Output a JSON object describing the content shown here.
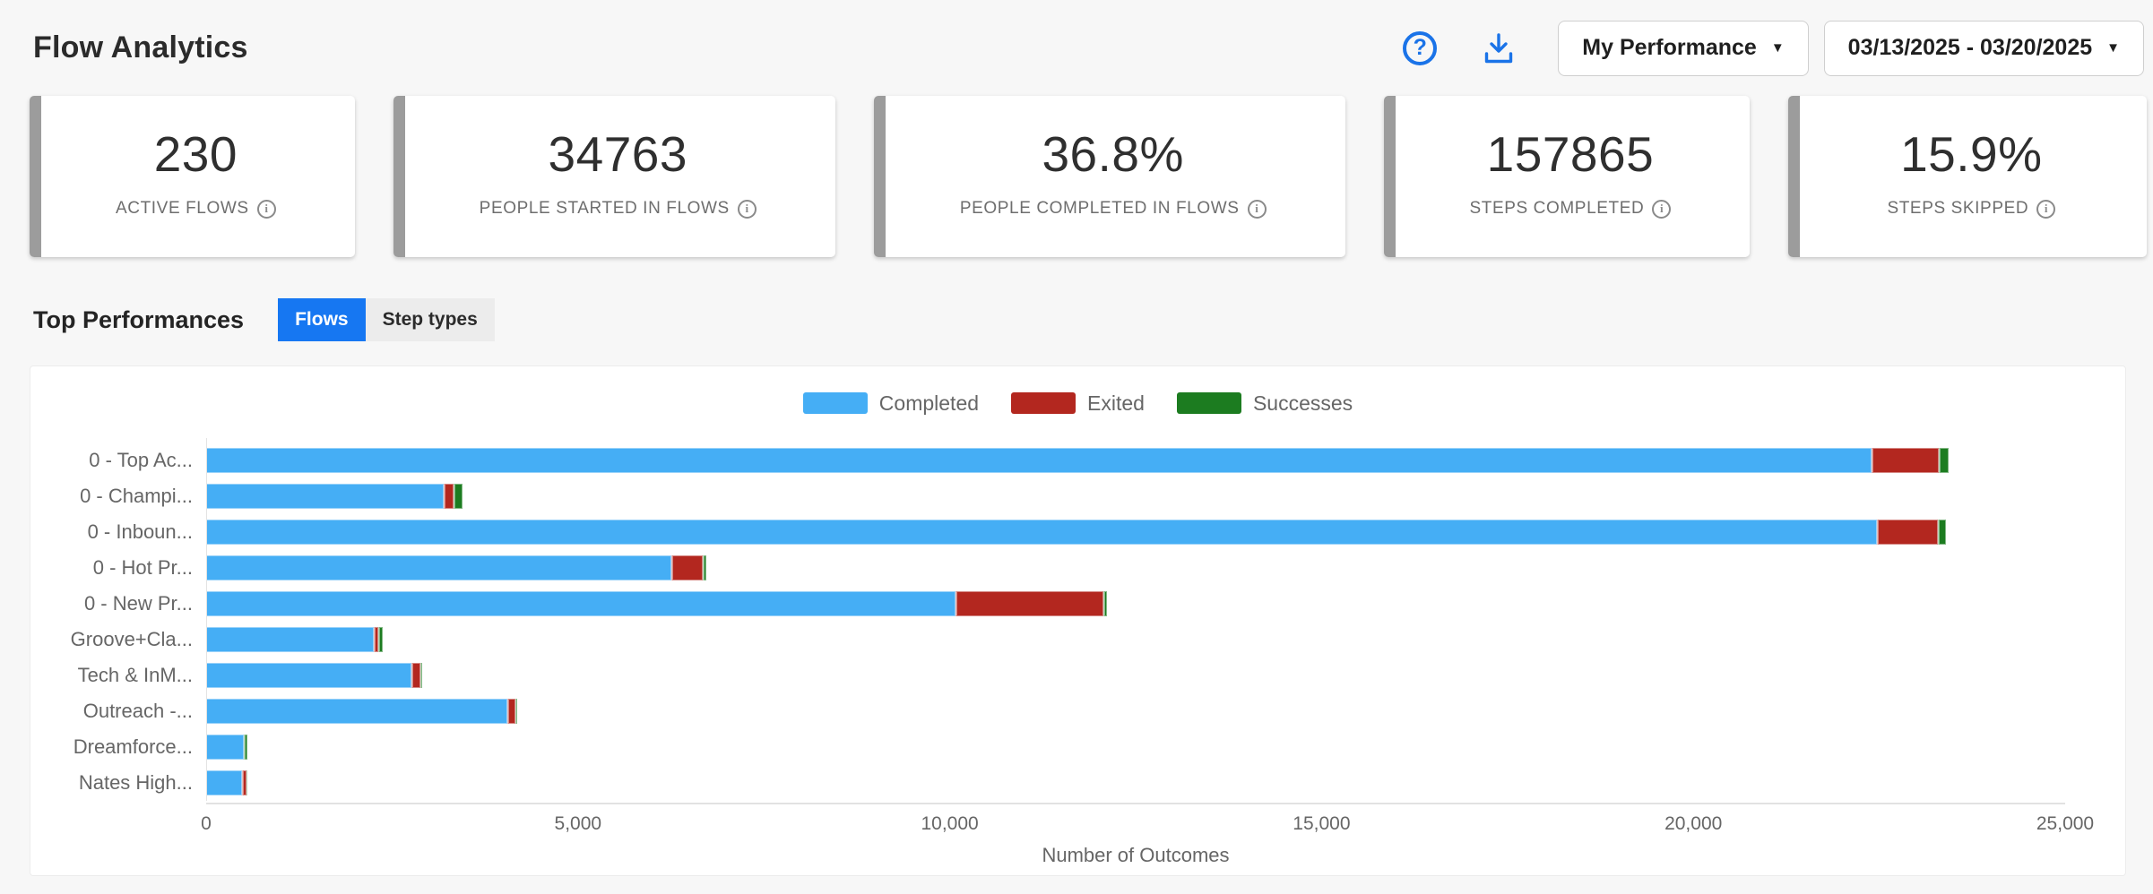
{
  "header": {
    "title": "Flow Analytics",
    "help_icon": "?",
    "performance_dropdown": {
      "selected": "My Performance"
    },
    "date_range_dropdown": {
      "selected": "03/13/2025 - 03/20/2025"
    },
    "caret": "▼"
  },
  "stat_cards": [
    {
      "value": "230",
      "label": "ACTIVE FLOWS"
    },
    {
      "value": "34763",
      "label": "PEOPLE STARTED IN FLOWS"
    },
    {
      "value": "36.8%",
      "label": "PEOPLE COMPLETED IN FLOWS"
    },
    {
      "value": "157865",
      "label": "STEPS COMPLETED"
    },
    {
      "value": "15.9%",
      "label": "STEPS SKIPPED"
    }
  ],
  "info_icon_glyph": "i",
  "top_performances": {
    "heading": "Top Performances",
    "tabs": [
      {
        "label": "Flows",
        "active": true
      },
      {
        "label": "Step types",
        "active": false
      }
    ]
  },
  "chart_data": {
    "type": "bar",
    "orientation": "horizontal",
    "stacked": true,
    "title": "",
    "xlabel": "Number of Outcomes",
    "ylabel": "",
    "xlim": [
      0,
      25000
    ],
    "xticks_values": [
      0,
      5000,
      10000,
      15000,
      20000,
      25000
    ],
    "xticks_labels": [
      "0",
      "5,000",
      "10,000",
      "15,000",
      "20,000",
      "25,000"
    ],
    "grid": false,
    "legend_position": "top-center",
    "categories": [
      "0 - Top Ac...",
      "0 - Champi...",
      "0 - Inboun...",
      "0 - Hot Pr...",
      "0 - New Pr...",
      "Groove+Cla...",
      "Tech & InM...",
      "Outreach -...",
      "Dreamforce...",
      "Nates High..."
    ],
    "series": [
      {
        "name": "Completed",
        "color": "#45aef5",
        "values": [
          22400,
          3200,
          22470,
          6250,
          10080,
          2260,
          2760,
          4050,
          505,
          480
        ]
      },
      {
        "name": "Exited",
        "color": "#b3271f",
        "values": [
          900,
          130,
          820,
          430,
          1990,
          50,
          120,
          110,
          0,
          60
        ]
      },
      {
        "name": "Successes",
        "color": "#1c7c20",
        "values": [
          130,
          120,
          110,
          50,
          50,
          60,
          25,
          25,
          45,
          10
        ]
      }
    ]
  },
  "colors": {
    "accent_blue": "#1a73e8",
    "tab_active_blue": "#1677f2",
    "card_accent_gray": "#9c9c9c",
    "page_background": "#f7f7f7"
  }
}
